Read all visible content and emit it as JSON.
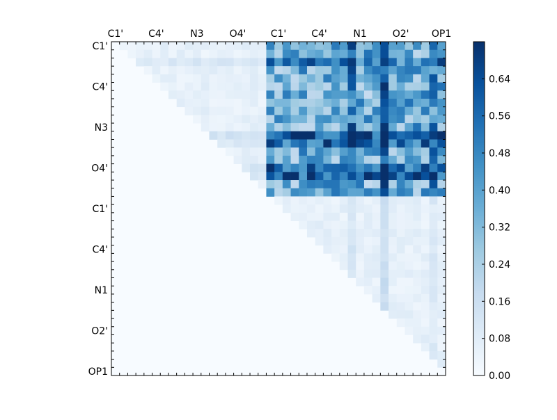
{
  "chart_data": {
    "type": "heatmap",
    "title": "",
    "colormap": "Blues",
    "value_range": [
      0.0,
      0.72
    ],
    "n": 41,
    "x_ticklabels": [
      "C1'",
      "C4'",
      "N3",
      "O4'",
      "C1'",
      "C4'",
      "N1",
      "O2'",
      "OP1"
    ],
    "y_ticklabels": [
      "C1'",
      "C4'",
      "N3",
      "O4'",
      "C1'",
      "C4'",
      "N1",
      "O2'",
      "OP1"
    ],
    "tick_every": 5,
    "colorbar_ticks": [
      "0.00",
      "0.08",
      "0.16",
      "0.24",
      "0.32",
      "0.40",
      "0.48",
      "0.56",
      "0.64"
    ],
    "upper_triangle_only": true,
    "block_means": {
      "A_vs_A": 0.06,
      "A_vs_B": 0.36,
      "B_vs_B": 0.06,
      "split_index": 19
    },
    "strong_rows": [
      {
        "row": 11,
        "value_boost": 0.25
      },
      {
        "row": 12,
        "value_boost": 0.18
      },
      {
        "row": 15,
        "value_boost": 0.18
      },
      {
        "row": 16,
        "value_boost": 0.22
      },
      {
        "row": 2,
        "value_boost": 0.15
      }
    ],
    "strong_cols": [
      {
        "col": 33,
        "value_boost": 0.25
      },
      {
        "col": 29,
        "value_boost": 0.15
      },
      {
        "col": 39,
        "value_boost": 0.1
      }
    ]
  },
  "colors": {
    "low": "#f7fbff",
    "high": "#08306b",
    "frame": "#000000"
  }
}
